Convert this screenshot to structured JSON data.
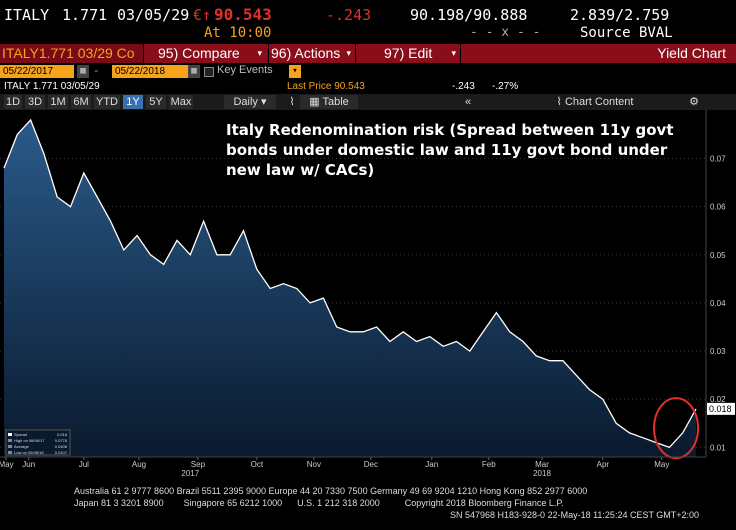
{
  "header": {
    "ticker": "ITALY",
    "coupon": "1.771",
    "maturity": "03/05/29",
    "price_prefix": "€↑",
    "price": "90.543",
    "change": "-.243",
    "time_label": "At 10:00",
    "bid_ask": "90.198/90.888",
    "xx": "- - x - -",
    "yield_pair": "2.839/2.759",
    "source": "Source BVAL"
  },
  "toolbar": {
    "ticker_tab": "ITALY1.771 03/29 Co",
    "compare": "95) Compare",
    "actions": "96) Actions",
    "edit": "97) Edit",
    "view": "Yield Chart"
  },
  "dates": {
    "start": "05/22/2017",
    "end": "05/22/2018",
    "key_events": "Key Events"
  },
  "security_line": {
    "name": "ITALY 1.771 03/05/29",
    "last_price": "Last Price 90.543",
    "change": "-.243",
    "pct": "-.27%"
  },
  "periods": [
    "1D",
    "3D",
    "1M",
    "6M",
    "YTD",
    "1Y",
    "5Y",
    "Max"
  ],
  "selected_period": "1Y",
  "frequency": "Daily",
  "table_label": "Table",
  "chart_content": "Chart Content",
  "chart_data": {
    "type": "area",
    "title": "Italy Redenomination risk (Spread between 11y govt bonds under domestic law and 11y govt bond under new law w/ CACs)",
    "x": [
      "2017-05-22",
      "2017-05-29",
      "2017-06-05",
      "2017-06-12",
      "2017-06-19",
      "2017-06-26",
      "2017-07-03",
      "2017-07-10",
      "2017-07-17",
      "2017-07-24",
      "2017-07-31",
      "2017-08-07",
      "2017-08-14",
      "2017-08-21",
      "2017-08-28",
      "2017-09-04",
      "2017-09-11",
      "2017-09-18",
      "2017-09-25",
      "2017-10-02",
      "2017-10-09",
      "2017-10-16",
      "2017-10-23",
      "2017-10-30",
      "2017-11-06",
      "2017-11-13",
      "2017-11-20",
      "2017-11-27",
      "2017-12-04",
      "2017-12-11",
      "2017-12-18",
      "2017-12-25",
      "2018-01-01",
      "2018-01-08",
      "2018-01-15",
      "2018-01-22",
      "2018-01-29",
      "2018-02-05",
      "2018-02-12",
      "2018-02-19",
      "2018-02-26",
      "2018-03-05",
      "2018-03-12",
      "2018-03-19",
      "2018-03-26",
      "2018-04-02",
      "2018-04-09",
      "2018-04-16",
      "2018-04-23",
      "2018-04-30",
      "2018-05-07",
      "2018-05-14",
      "2018-05-21"
    ],
    "values": [
      0.068,
      0.075,
      0.078,
      0.071,
      0.062,
      0.06,
      0.067,
      0.062,
      0.057,
      0.051,
      0.054,
      0.05,
      0.048,
      0.053,
      0.05,
      0.057,
      0.05,
      0.05,
      0.055,
      0.047,
      0.043,
      0.044,
      0.043,
      0.04,
      0.041,
      0.035,
      0.034,
      0.034,
      0.035,
      0.032,
      0.034,
      0.032,
      0.033,
      0.031,
      0.032,
      0.03,
      0.034,
      0.038,
      0.034,
      0.032,
      0.029,
      0.028,
      0.028,
      0.025,
      0.022,
      0.02,
      0.015,
      0.013,
      0.012,
      0.011,
      0.01,
      0.013,
      0.018
    ],
    "ylim": [
      0.008,
      0.078
    ],
    "yticks": [
      "0.07",
      "0.06",
      "0.05",
      "0.04",
      "0.03",
      "0.02",
      "0.01"
    ],
    "last_value": "0.018",
    "months": [
      "May",
      "Jun",
      "Jul",
      "Aug",
      "Sep",
      "Oct",
      "Nov",
      "Dec",
      "Jan",
      "Feb",
      "Mar",
      "Apr",
      "May"
    ],
    "years": [
      "2017",
      "2018"
    ],
    "legend": [
      {
        "label": "Spread",
        "value": "0.018"
      },
      {
        "label": "High on 06/06/17",
        "value": "0.0778"
      },
      {
        "label": "Average",
        "value": "0.0408"
      },
      {
        "label": "Low on 05/08/18",
        "value": "0.0107"
      }
    ],
    "colors": {
      "line": "#ffffff",
      "fill_top": "#2a5a8a",
      "fill_bottom": "#0a1a2e",
      "highlight": "#e0302a"
    }
  },
  "footer": {
    "line1": "Australia 61 2 9777 8600 Brazil 5511 2395 9000 Europe 44 20 7330 7500 Germany 49 69 9204 1210 Hong Kong 852 2977 6000",
    "line2": "Japan 81 3 3201 8900        Singapore 65 6212 1000      U.S. 1 212 318 2000          Copyright 2018 Bloomberg Finance L.P.",
    "line3": "SN 547968 H183-928-0 22-May-18 11:25:24 CEST GMT+2:00"
  }
}
